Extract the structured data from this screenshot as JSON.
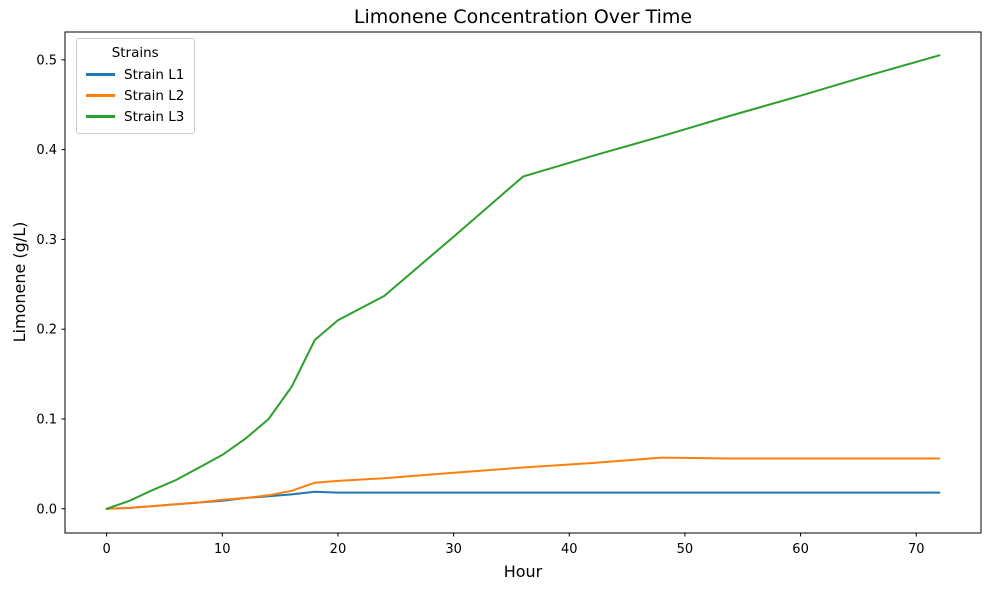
{
  "chart_data": {
    "type": "line",
    "title": "Limonene Concentration Over Time",
    "xlabel": "Hour",
    "ylabel": "Limonene (g/L)",
    "grid": false,
    "legend": {
      "title": "Strains",
      "position": "upper left"
    },
    "xlim": [
      -3.6,
      75.6
    ],
    "ylim": [
      -0.027,
      0.531
    ],
    "xticks": [
      0,
      10,
      20,
      30,
      40,
      50,
      60,
      70
    ],
    "yticks": [
      0.0,
      0.1,
      0.2,
      0.3,
      0.4,
      0.5
    ],
    "x": [
      0,
      2,
      4,
      6,
      8,
      10,
      12,
      14,
      16,
      18,
      20,
      24,
      30,
      36,
      42,
      48,
      54,
      60,
      66,
      72
    ],
    "series": [
      {
        "name": "Strain L1",
        "color": "#1f77b4",
        "values": [
          0.0,
          0.001,
          0.003,
          0.005,
          0.007,
          0.009,
          0.012,
          0.014,
          0.016,
          0.019,
          0.018,
          0.018,
          0.018,
          0.018,
          0.018,
          0.018,
          0.018,
          0.018,
          0.018,
          0.018
        ]
      },
      {
        "name": "Strain L2",
        "color": "#ff7f0e",
        "values": [
          0.0,
          0.001,
          0.003,
          0.005,
          0.007,
          0.01,
          0.012,
          0.015,
          0.02,
          0.029,
          0.031,
          0.034,
          0.04,
          0.046,
          0.051,
          0.057,
          0.056,
          0.056,
          0.056,
          0.056
        ]
      },
      {
        "name": "Strain L3",
        "color": "#2ca02c",
        "values": [
          0.0,
          0.009,
          0.021,
          0.032,
          0.046,
          0.06,
          0.078,
          0.1,
          0.136,
          0.188,
          0.21,
          0.237,
          0.303,
          0.37,
          0.393,
          0.415,
          0.438,
          0.46,
          0.483,
          0.505
        ]
      }
    ]
  }
}
